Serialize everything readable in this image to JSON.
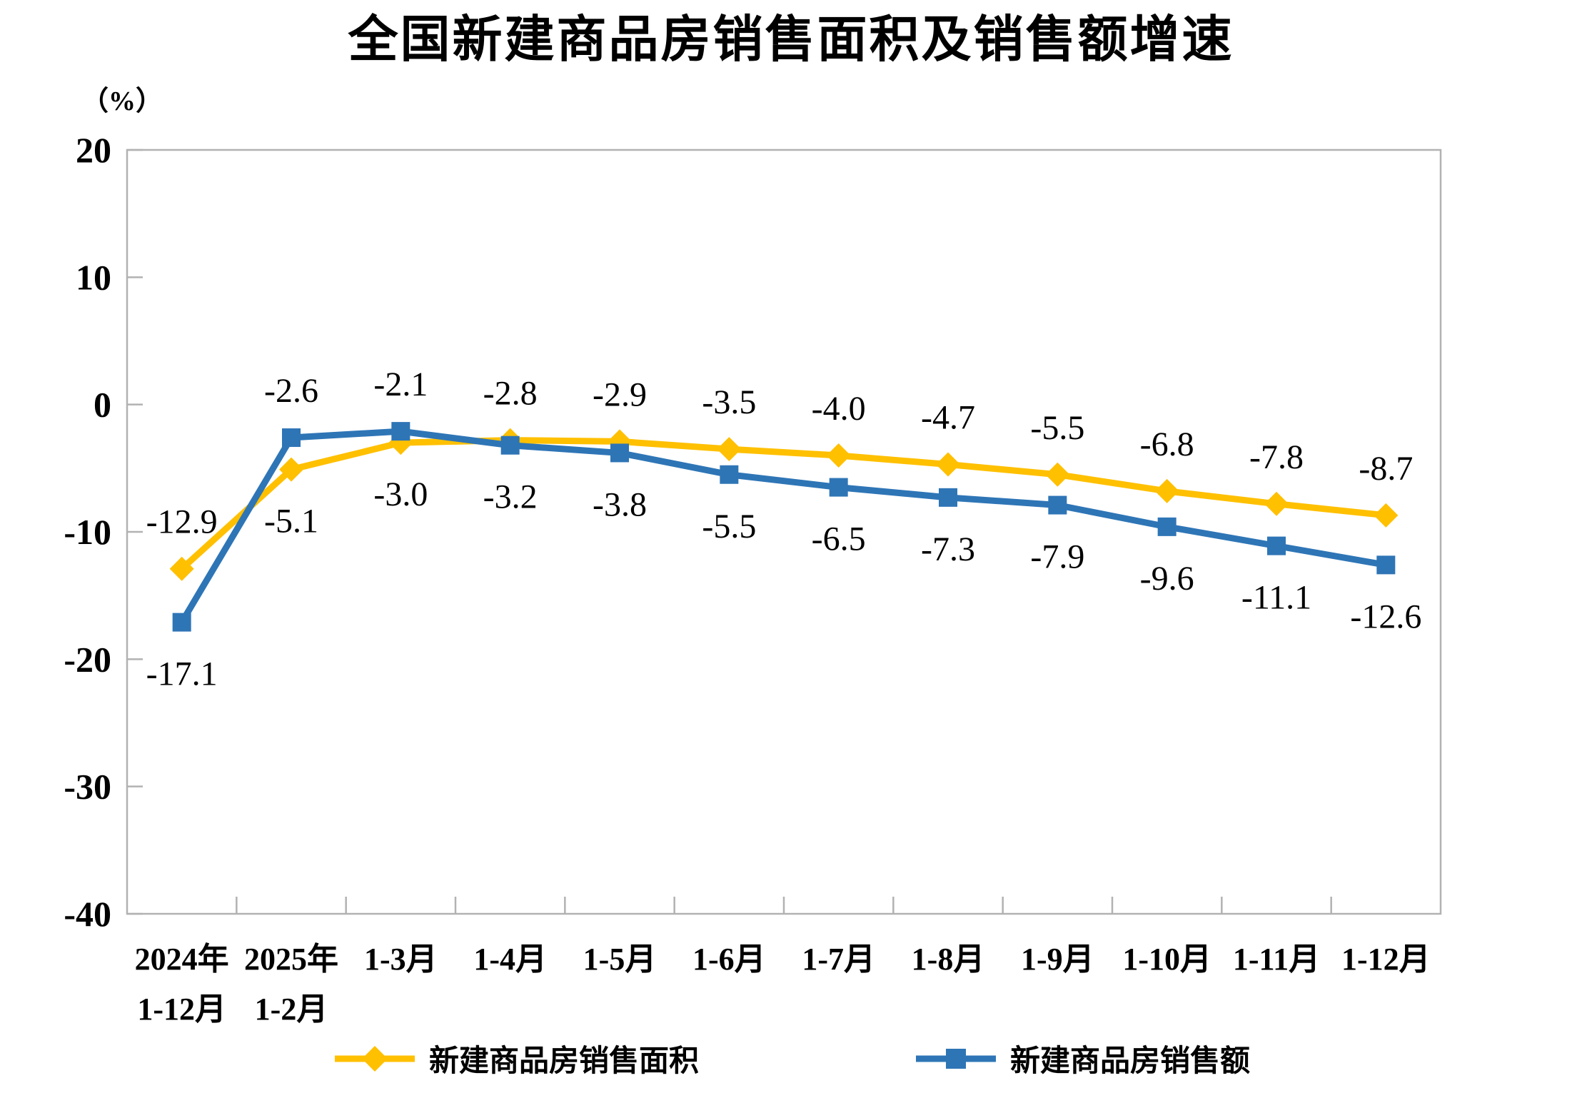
{
  "title": "全国新建商品房销售面积及销售额增速",
  "y_axis_unit": "（%）",
  "chart_data": {
    "type": "line",
    "categories": [
      [
        "2024年",
        "1-12月"
      ],
      [
        "2025年",
        "1-2月"
      ],
      [
        "1-3月"
      ],
      [
        "1-4月"
      ],
      [
        "1-5月"
      ],
      [
        "1-6月"
      ],
      [
        "1-7月"
      ],
      [
        "1-8月"
      ],
      [
        "1-9月"
      ],
      [
        "1-10月"
      ],
      [
        "1-11月"
      ],
      [
        "1-12月"
      ]
    ],
    "series": [
      {
        "name": "新建商品房销售面积",
        "marker": "diamond",
        "color": "#FFC000",
        "values": [
          -12.9,
          -5.1,
          -3.0,
          -2.8,
          -2.9,
          -3.5,
          -4.0,
          -4.7,
          -5.5,
          -6.8,
          -7.8,
          -8.7
        ]
      },
      {
        "name": "新建商品房销售额",
        "marker": "square",
        "color": "#2E75B6",
        "values": [
          -17.1,
          -2.6,
          -2.1,
          -3.2,
          -3.8,
          -5.5,
          -6.5,
          -7.3,
          -7.9,
          -9.6,
          -11.1,
          -12.6
        ]
      }
    ],
    "ylim": [
      -40,
      20
    ],
    "y_ticks": [
      20,
      10,
      0,
      -10,
      -20,
      -30,
      -40
    ],
    "grid": false,
    "legend_position": "bottom",
    "axis_color": "#b2b2b2",
    "label_color": "#000000"
  }
}
